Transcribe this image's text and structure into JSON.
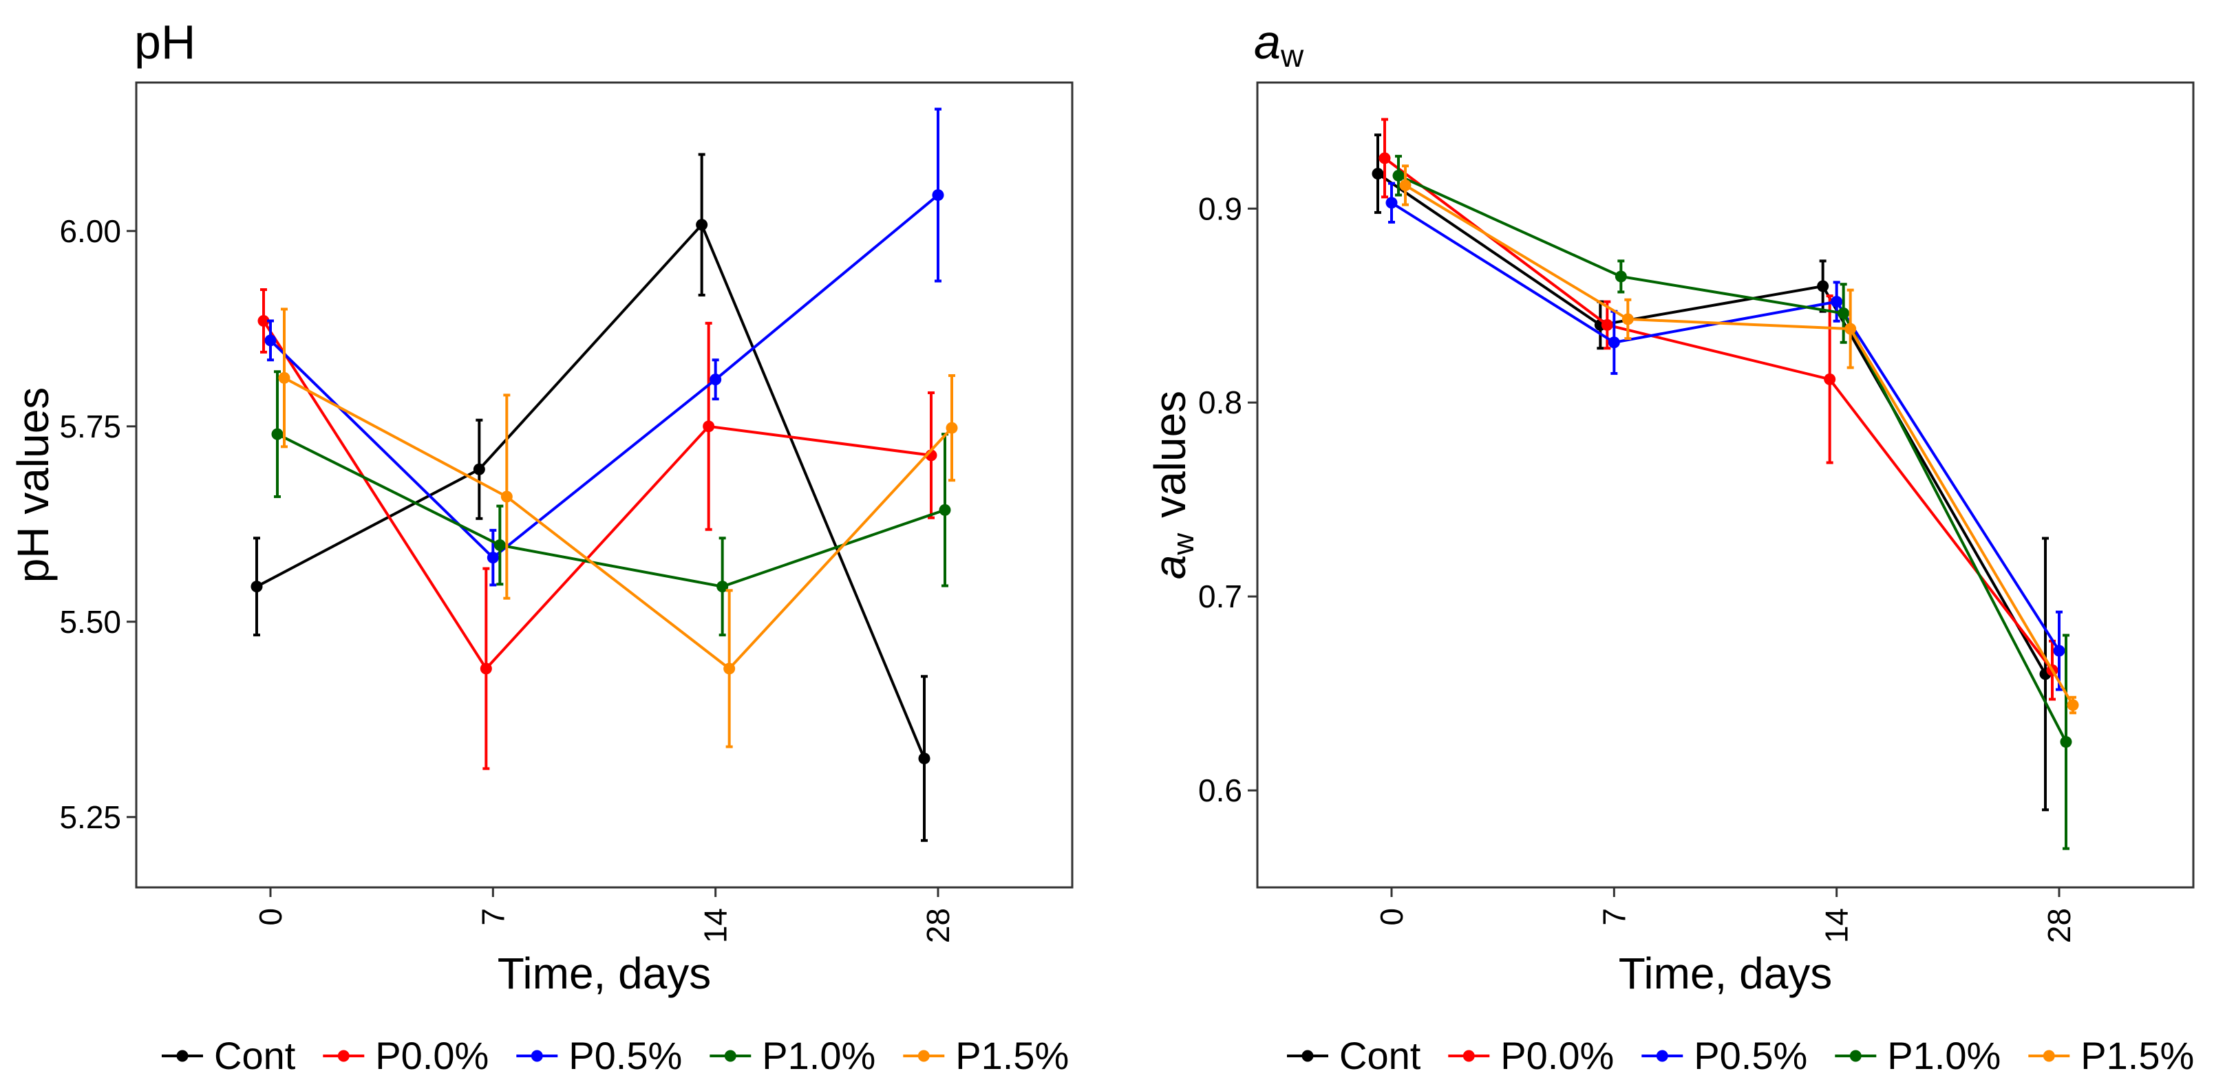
{
  "chart_data": [
    {
      "type": "line",
      "title": "pH",
      "xlabel": "Time, days",
      "ylabel": "pH values",
      "categories": [
        "0",
        "7",
        "14",
        "28"
      ],
      "ylim": [
        5.16,
        6.19
      ],
      "yticks": [
        "5.25",
        "5.50",
        "5.75",
        "6.00"
      ],
      "ytick_values": [
        5.25,
        5.5,
        5.75,
        6.0
      ],
      "grid": false,
      "legend_position": "bottom",
      "series": [
        {
          "name": "Cont",
          "color": "#000000",
          "values": [
            5.545,
            5.695,
            6.008,
            5.325
          ],
          "errors": [
            0.062,
            0.063,
            0.09,
            0.105
          ]
        },
        {
          "name": "P0.0%",
          "color": "#ff0000",
          "values": [
            5.885,
            5.44,
            5.75,
            5.713
          ],
          "errors": [
            0.04,
            0.128,
            0.132,
            0.08
          ]
        },
        {
          "name": "P0.5%",
          "color": "#0000ff",
          "values": [
            5.86,
            5.582,
            5.81,
            6.046
          ],
          "errors": [
            0.025,
            0.035,
            0.025,
            0.11
          ]
        },
        {
          "name": "P1.0%",
          "color": "#006400",
          "values": [
            5.74,
            5.598,
            5.545,
            5.643
          ],
          "errors": [
            0.08,
            0.05,
            0.062,
            0.097
          ]
        },
        {
          "name": "P1.5%",
          "color": "#ff8c00",
          "values": [
            5.812,
            5.66,
            5.44,
            5.748
          ],
          "errors": [
            0.088,
            0.13,
            0.1,
            0.067
          ]
        }
      ]
    },
    {
      "type": "line",
      "title_base": "a",
      "title_sub": "w",
      "xlabel": "Time, days",
      "ylabel_base": "a",
      "ylabel_sub": "w",
      "ylabel_rest": "values",
      "categories": [
        "0",
        "7",
        "14",
        "28"
      ],
      "ylim": [
        0.55,
        0.965
      ],
      "yticks": [
        "0.6",
        "0.7",
        "0.8",
        "0.9"
      ],
      "ytick_values": [
        0.6,
        0.7,
        0.8,
        0.9
      ],
      "grid": false,
      "legend_position": "bottom",
      "series": [
        {
          "name": "Cont",
          "color": "#000000",
          "values": [
            0.918,
            0.84,
            0.86,
            0.66
          ],
          "errors": [
            0.02,
            0.012,
            0.013,
            0.07
          ]
        },
        {
          "name": "P0.0%",
          "color": "#ff0000",
          "values": [
            0.926,
            0.84,
            0.812,
            0.662
          ],
          "errors": [
            0.02,
            0.012,
            0.043,
            0.015
          ]
        },
        {
          "name": "P0.5%",
          "color": "#0000ff",
          "values": [
            0.903,
            0.831,
            0.852,
            0.672
          ],
          "errors": [
            0.01,
            0.016,
            0.01,
            0.02
          ]
        },
        {
          "name": "P1.0%",
          "color": "#006400",
          "values": [
            0.917,
            0.865,
            0.846,
            0.625
          ],
          "errors": [
            0.01,
            0.008,
            0.015,
            0.055
          ]
        },
        {
          "name": "P1.5%",
          "color": "#ff8c00",
          "values": [
            0.912,
            0.843,
            0.838,
            0.644
          ],
          "errors": [
            0.01,
            0.01,
            0.02,
            0.004
          ]
        }
      ]
    }
  ]
}
